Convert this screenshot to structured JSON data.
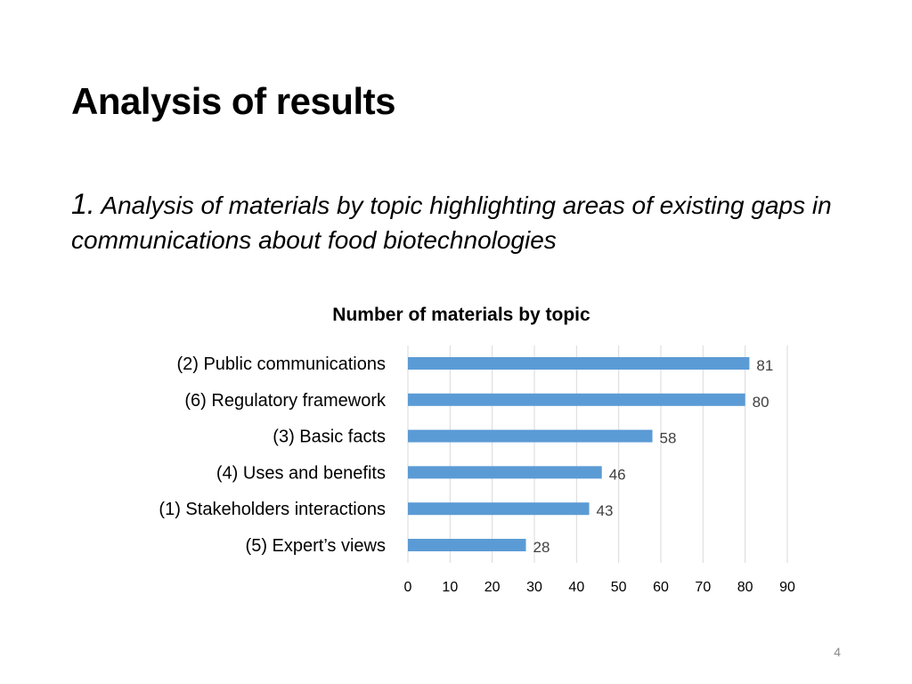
{
  "slide": {
    "title": "Analysis of results",
    "subtitle_number": "1.",
    "subtitle_text": "Analysis of materials by topic highlighting areas of existing gaps in communications about food biotechnologies",
    "page_number": "4"
  },
  "colors": {
    "bar": "#5b9bd5",
    "gridline": "#d9d9d9",
    "label_text": "#000000",
    "value_text": "#404040"
  },
  "chart_data": {
    "type": "bar",
    "orientation": "horizontal",
    "title": "Number of materials by topic",
    "categories": [
      "(2) Public communications",
      "(6) Regulatory framework",
      "(3) Basic facts",
      "(4) Uses and benefits",
      "(1) Stakeholders interactions",
      "(5) Expert’s views"
    ],
    "values": [
      81,
      80,
      58,
      46,
      43,
      28
    ],
    "xlim": [
      0,
      90
    ],
    "xticks": [
      0,
      10,
      20,
      30,
      40,
      50,
      60,
      70,
      80,
      90
    ],
    "xlabel": "",
    "ylabel": "",
    "grid": true,
    "data_labels": true,
    "legend": false
  }
}
